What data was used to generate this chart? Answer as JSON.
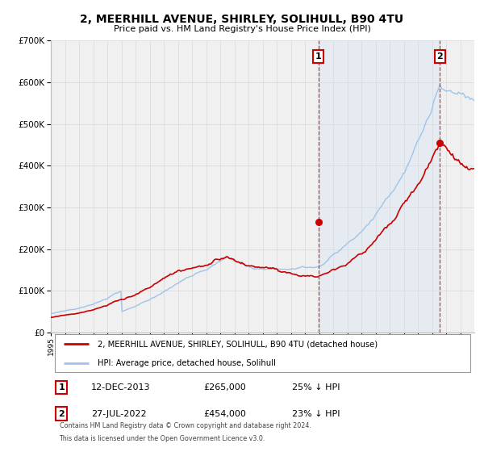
{
  "title": "2, MEERHILL AVENUE, SHIRLEY, SOLIHULL, B90 4TU",
  "subtitle": "Price paid vs. HM Land Registry's House Price Index (HPI)",
  "hpi_color": "#a0c4e8",
  "price_color": "#cc0000",
  "dashed_color": "#dd3333",
  "background_color": "#ffffff",
  "plot_bg_color": "#f0f0f0",
  "grid_color": "#d8d8d8",
  "shade_color": "#cce0f5",
  "legend1": "2, MEERHILL AVENUE, SHIRLEY, SOLIHULL, B90 4TU (detached house)",
  "legend2": "HPI: Average price, detached house, Solihull",
  "marker1_date": "12-DEC-2013",
  "marker1_price": 265000,
  "marker1_pct": "25%",
  "marker1_year": 2013.96,
  "marker2_date": "27-JUL-2022",
  "marker2_price": 454000,
  "marker2_pct": "23%",
  "marker2_year": 2022.57,
  "footer1": "Contains HM Land Registry data © Crown copyright and database right 2024.",
  "footer2": "This data is licensed under the Open Government Licence v3.0.",
  "ylim_max": 700000,
  "year_start": 1995,
  "year_end": 2025
}
